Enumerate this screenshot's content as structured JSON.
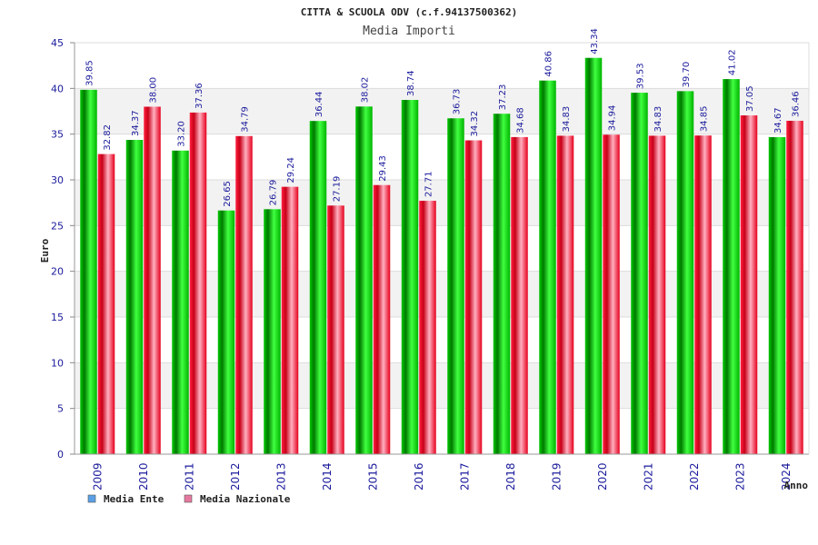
{
  "chart_data": {
    "type": "bar",
    "title": "CITTA & SCUOLA ODV (c.f.94137500362)",
    "subtitle": "Media Importi",
    "xlabel": "Anno",
    "ylabel": "Euro",
    "ylim": [
      0,
      45
    ],
    "yticks": [
      0,
      5,
      10,
      15,
      20,
      25,
      30,
      35,
      40,
      45
    ],
    "grid": true,
    "legend_position": "bottom-left",
    "categories": [
      "2009",
      "2010",
      "2011",
      "2012",
      "2013",
      "2014",
      "2015",
      "2016",
      "2017",
      "2018",
      "2019",
      "2020",
      "2021",
      "2022",
      "2023",
      "2024"
    ],
    "series": [
      {
        "name": "Media Ente",
        "values": [
          39.85,
          34.37,
          33.2,
          26.65,
          26.79,
          36.44,
          38.02,
          38.74,
          36.73,
          37.23,
          40.86,
          43.34,
          39.53,
          39.7,
          41.02,
          34.67
        ],
        "labels": [
          "39.85",
          "34.37",
          "33.20",
          "26.65",
          "26.79",
          "36.44",
          "38.02",
          "38.74",
          "36.73",
          "37.23",
          "40.86",
          "43.34",
          "39.53",
          "39.70",
          "41.02",
          "34.67"
        ],
        "color": "#00b400",
        "legend_color": "#5aa0e6"
      },
      {
        "name": "Media Nazionale",
        "values": [
          32.82,
          38.0,
          37.36,
          34.79,
          29.24,
          27.19,
          29.43,
          27.71,
          34.32,
          34.68,
          34.83,
          34.94,
          34.83,
          34.85,
          37.05,
          36.46
        ],
        "labels": [
          "32.82",
          "38.00",
          "37.36",
          "34.79",
          "29.24",
          "27.19",
          "29.43",
          "27.71",
          "34.32",
          "34.68",
          "34.83",
          "34.94",
          "34.83",
          "34.85",
          "37.05",
          "36.46"
        ],
        "color": "#e6001e",
        "legend_color": "#e678a0"
      }
    ]
  }
}
